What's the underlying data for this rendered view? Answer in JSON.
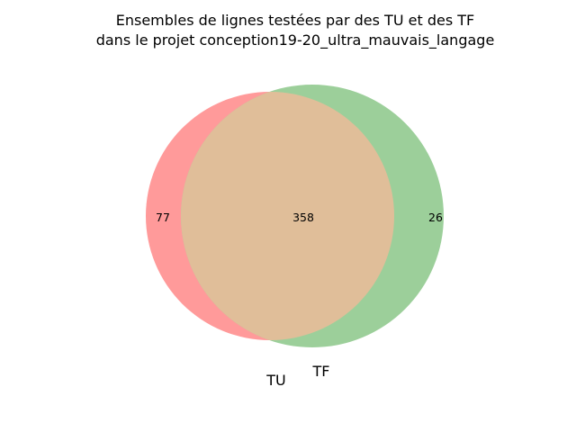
{
  "title": {
    "line1": "Ensembles de lignes testées par des TU et des TF",
    "line2": "dans le projet conception19-20_ultra_mauvais_langage"
  },
  "sets": {
    "a": {
      "label": "TU",
      "color": "#ff9a9a"
    },
    "b": {
      "label": "TF",
      "color": "#9ccf9a"
    },
    "overlap_color": "#e0be99"
  },
  "counts": {
    "only_a": "77",
    "both": "358",
    "only_b": "26"
  }
}
